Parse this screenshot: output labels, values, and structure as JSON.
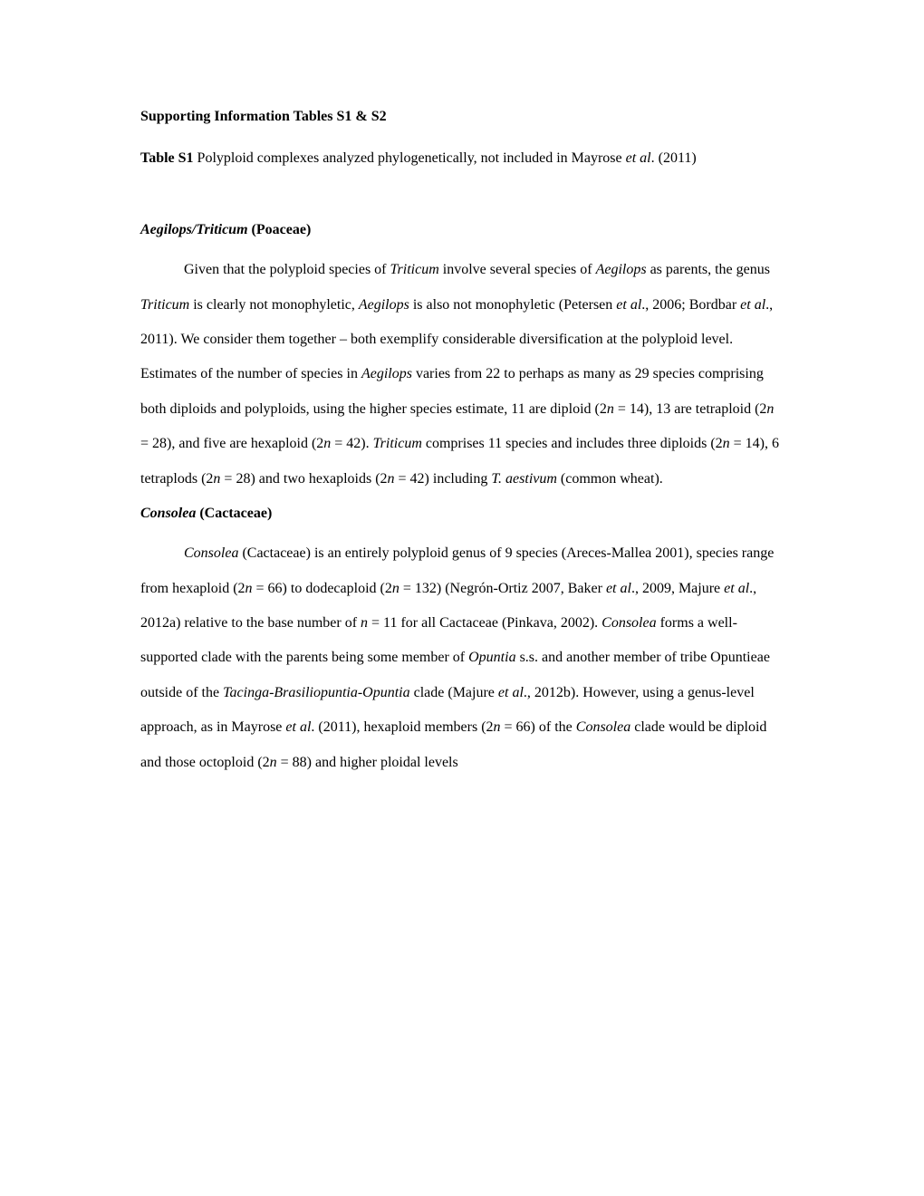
{
  "title": "Supporting Information Tables S1 & S2",
  "table_intro": {
    "bold_prefix": "Table S1",
    "text_1": " Polyploid complexes analyzed phylogenetically, not included in Mayrose ",
    "italic_1": "et al",
    "text_2": ". (2011)"
  },
  "section1": {
    "heading_italic": "Aegilops/Triticum",
    "heading_normal": " (Poaceae)",
    "para": {
      "t1": "Given that the polyploid species of ",
      "i1": "Triticum",
      "t2": " involve several species of ",
      "i2": "Aegilops",
      "t3": " as parents, the genus ",
      "i3": "Triticum",
      "t4": " is clearly not monophyletic, ",
      "i4": "Aegilops",
      "t5": " is also not monophyletic (Petersen ",
      "i5": "et al",
      "t6": "., 2006; Bordbar ",
      "i6": "et al",
      "t7": "., 2011). We consider them together – both exemplify considerable diversification at the polyploid level. Estimates of the number of species in ",
      "i7": "Aegilops",
      "t8": " varies from 22 to perhaps as many as 29 species comprising both diploids and polyploids, using the higher species estimate, 11 are diploid (2",
      "i8": "n",
      "t9": " = 14), 13 are tetraploid (2",
      "i9": "n",
      "t10": " = 28), and five are hexaploid (2",
      "i10": "n",
      "t11": " = 42). ",
      "i11": "Triticum",
      "t12": " comprises 11 species and includes three diploids (2",
      "i12": "n",
      "t13": " = 14), 6 tetraplods (2",
      "i13": "n",
      "t14": " = 28) and two hexaploids (2",
      "i14": "n",
      "t15": " = 42) including ",
      "i15": "T. aestivum",
      "t16": " (common wheat)."
    }
  },
  "section2": {
    "heading_italic": "Consolea",
    "heading_normal": " (Cactaceae)",
    "para": {
      "t1": "",
      "i1": "Consolea",
      "t2": " (Cactaceae) is an entirely polyploid genus of 9 species (Areces-Mallea 2001), species range from hexaploid (2",
      "i2": "n",
      "t3": " = 66) to dodecaploid (2",
      "i3": "n",
      "t4": " = 132) (Negrón-Ortiz 2007, Baker ",
      "i4": "et al",
      "t5": "., 2009, Majure ",
      "i5": "et al",
      "t6": "., 2012a) relative to the base number of ",
      "i6": "n",
      "t7": " = 11 for all Cactaceae (Pinkava, 2002). ",
      "i7": "Consolea",
      "t8": " forms a well-supported clade with the parents being some member of ",
      "i8": "Opuntia",
      "t9": " s.s. and another member of tribe Opuntieae outside of the ",
      "i9": "Tacinga-Brasiliopuntia-Opuntia",
      "t10": " clade (Majure ",
      "i10": "et al",
      "t11": "., 2012b). However, using a genus-level approach, as in Mayrose ",
      "i11": "et al",
      "t12": ". (2011), hexaploid members (2",
      "i12": "n",
      "t13": " = 66) of the ",
      "i13": "Consolea",
      "t14": " clade would be diploid and those octoploid (2",
      "i14": "n",
      "t15": " = 88) and higher ploidal levels"
    }
  }
}
